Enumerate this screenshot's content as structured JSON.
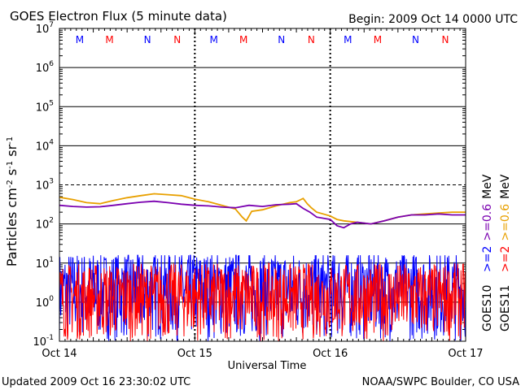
{
  "header": {
    "title": "GOES Electron Flux (5 minute data)",
    "begin": "Begin: 2009 Oct 14 0000 UTC"
  },
  "footer": {
    "updated": "Updated 2009 Oct 16 23:30:02 UTC",
    "credit": "NOAA/SWPC Boulder, CO USA"
  },
  "chart_data": {
    "type": "line",
    "title": "GOES Electron Flux (5 minute data)",
    "xlabel": "Universal Time",
    "ylabel": "Particles cm^-2 s^-1 sr^-1",
    "yscale": "log",
    "ylim": [
      0.1,
      10000000
    ],
    "xlim": [
      "Oct 14",
      "Oct 17"
    ],
    "x_ticks": [
      "Oct 14",
      "Oct 15",
      "Oct 16",
      "Oct 17"
    ],
    "y_ticks": [
      {
        "base": "10",
        "exp": "-1"
      },
      {
        "base": "10",
        "exp": "0"
      },
      {
        "base": "10",
        "exp": "1"
      },
      {
        "base": "10",
        "exp": "2"
      },
      {
        "base": "10",
        "exp": "3"
      },
      {
        "base": "10",
        "exp": "4"
      },
      {
        "base": "10",
        "exp": "5"
      },
      {
        "base": "10",
        "exp": "6"
      },
      {
        "base": "10",
        "exp": "7"
      }
    ],
    "threshold": 1000,
    "grid": true,
    "markers": [
      {
        "label": "M",
        "day": 0.15,
        "color": "#0000ff"
      },
      {
        "label": "M",
        "day": 0.37,
        "color": "#ff0000"
      },
      {
        "label": "N",
        "day": 0.65,
        "color": "#0000ff"
      },
      {
        "label": "N",
        "day": 0.87,
        "color": "#ff0000"
      },
      {
        "label": "M",
        "day": 1.14,
        "color": "#0000ff"
      },
      {
        "label": "M",
        "day": 1.36,
        "color": "#ff0000"
      },
      {
        "label": "N",
        "day": 1.64,
        "color": "#0000ff"
      },
      {
        "label": "N",
        "day": 1.86,
        "color": "#ff0000"
      },
      {
        "label": "M",
        "day": 2.13,
        "color": "#0000ff"
      },
      {
        "label": "M",
        "day": 2.35,
        "color": "#ff0000"
      },
      {
        "label": "N",
        "day": 2.63,
        "color": "#0000ff"
      },
      {
        "label": "N",
        "day": 2.85,
        "color": "#ff0000"
      }
    ],
    "legend_right": [
      {
        "text": ">=2",
        "color": "#0000ff",
        "column": 0
      },
      {
        "text": ">=0.6",
        "color": "#7a00b0",
        "column": 0
      },
      {
        "text": "MeV",
        "color": "#000000",
        "column": 0
      },
      {
        "text": ">=2",
        "color": "#ff0000",
        "column": 1
      },
      {
        "text": ">=0.6",
        "color": "#e8a000",
        "column": 1
      },
      {
        "text": "MeV",
        "color": "#000000",
        "column": 1
      }
    ],
    "satellite_labels": [
      {
        "text": "GOES10",
        "column": 0
      },
      {
        "text": "GOES11",
        "column": 1
      }
    ],
    "series": [
      {
        "name": "GOES11 >=0.6 MeV",
        "color": "#e8a000",
        "x": [
          0,
          0.1,
          0.2,
          0.3,
          0.4,
          0.5,
          0.6,
          0.7,
          0.8,
          0.9,
          1.0,
          1.1,
          1.2,
          1.3,
          1.35,
          1.38,
          1.42,
          1.5,
          1.6,
          1.7,
          1.75,
          1.8,
          1.83,
          1.86,
          1.9,
          2.0,
          2.05,
          2.1,
          2.2,
          2.3,
          2.4,
          2.5,
          2.6,
          2.7,
          2.8,
          2.9,
          3.0
        ],
        "y": [
          480,
          420,
          350,
          330,
          400,
          470,
          530,
          590,
          560,
          530,
          430,
          370,
          300,
          240,
          150,
          120,
          210,
          230,
          290,
          350,
          370,
          450,
          330,
          260,
          200,
          160,
          130,
          120,
          110,
          100,
          120,
          150,
          170,
          180,
          190,
          200,
          200
        ]
      },
      {
        "name": "GOES10 >=0.6 MeV",
        "color": "#7a00b0",
        "x": [
          0,
          0.1,
          0.2,
          0.3,
          0.4,
          0.5,
          0.6,
          0.7,
          0.8,
          0.9,
          1.0,
          1.1,
          1.2,
          1.3,
          1.4,
          1.5,
          1.6,
          1.7,
          1.75,
          1.8,
          1.85,
          1.9,
          2.0,
          2.05,
          2.1,
          2.15,
          2.2,
          2.3,
          2.4,
          2.5,
          2.6,
          2.7,
          2.8,
          2.9,
          3.0
        ],
        "y": [
          300,
          280,
          270,
          275,
          300,
          330,
          360,
          380,
          350,
          320,
          300,
          290,
          270,
          260,
          300,
          280,
          310,
          320,
          330,
          250,
          200,
          150,
          130,
          90,
          80,
          100,
          110,
          100,
          120,
          150,
          170,
          170,
          180,
          170,
          170
        ]
      }
    ],
    "noise_series": [
      {
        "name": "GOES10 >=2 MeV",
        "color": "#0000ff",
        "typical_range": [
          0.1,
          10
        ]
      },
      {
        "name": "GOES11 >=2 MeV",
        "color": "#ff0000",
        "typical_range": [
          0.1,
          5
        ]
      }
    ],
    "colors": {
      "axis": "#000000",
      "background": "#ffffff"
    }
  }
}
